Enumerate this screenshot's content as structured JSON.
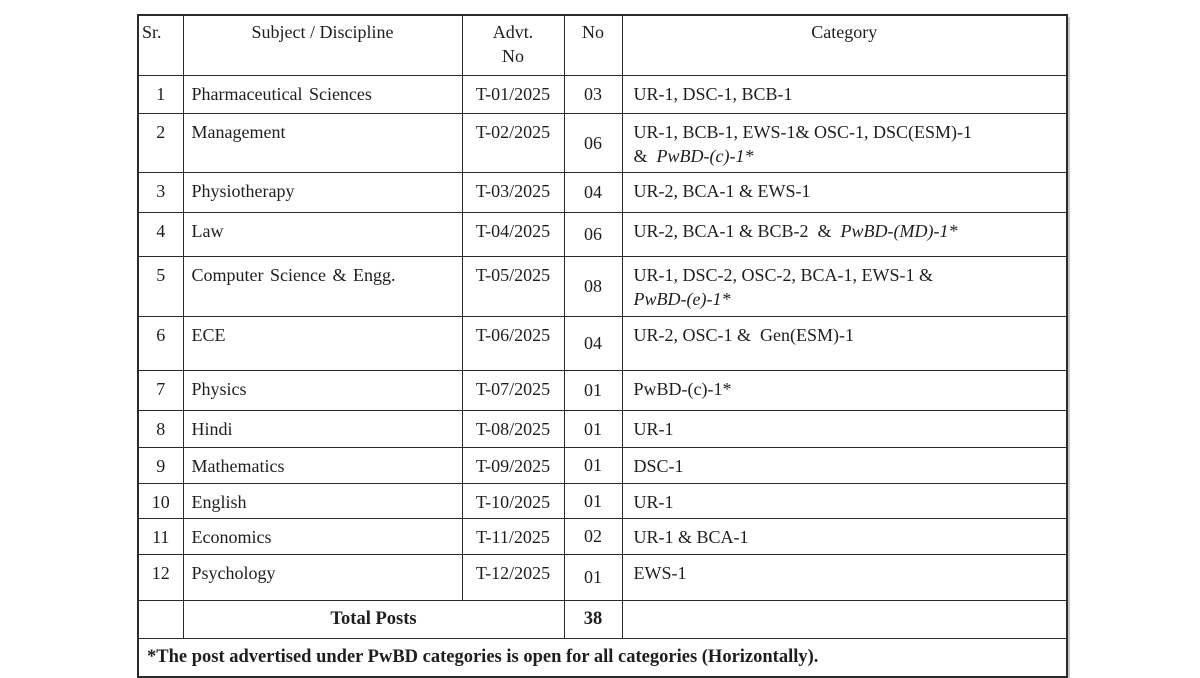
{
  "table": {
    "header": {
      "sr": "Sr.",
      "subject": "Subject / Discipline",
      "advt_line1": "Advt.",
      "advt_line2": "No",
      "no": "No",
      "category": "Category"
    },
    "rows": [
      {
        "sr": "1",
        "subject": "Pharmaceutical  Sciences",
        "advt": "T-01/2025",
        "no": "03",
        "category": [
          {
            "text": "UR-1, DSC-1, BCB-1"
          }
        ]
      },
      {
        "sr": "2",
        "subject": "Management",
        "advt": "T-02/2025",
        "no": "06",
        "category": [
          {
            "text": "UR-1, BCB-1, EWS-1& OSC-1, DSC(ESM)-1"
          },
          {
            "break": true
          },
          {
            "text": "&  "
          },
          {
            "text": "PwBD-(c)-1*",
            "italic": true
          }
        ]
      },
      {
        "sr": "3",
        "subject": "Physiotherapy",
        "advt": "T-03/2025",
        "no": "04",
        "category": [
          {
            "text": "UR-2, BCA-1 & EWS-1"
          }
        ]
      },
      {
        "sr": "4",
        "subject": "Law",
        "advt": "T-04/2025",
        "no": "06",
        "category": [
          {
            "text": "UR-2, BCA-1 & BCB-2  &  "
          },
          {
            "text": "PwBD-(MD)-1*",
            "italic": true
          }
        ]
      },
      {
        "sr": "5",
        "subject": "Computer  Science  &  Engg.",
        "advt": "T-05/2025",
        "no": "08",
        "category": [
          {
            "text": "UR-1, DSC-2, OSC-2, BCA-1, EWS-1 &"
          },
          {
            "break": true
          },
          {
            "text": "PwBD-(e)-1*",
            "italic": true
          }
        ]
      },
      {
        "sr": "6",
        "subject": "ECE",
        "advt": "T-06/2025",
        "no": "04",
        "category": [
          {
            "text": "UR-2, OSC-1 &  Gen(ESM)-1"
          }
        ]
      },
      {
        "sr": "7",
        "subject": "Physics",
        "advt": "T-07/2025",
        "no": "01",
        "category": [
          {
            "text": "PwBD-(c)-1*"
          }
        ]
      },
      {
        "sr": "8",
        "subject": "Hindi",
        "advt": "T-08/2025",
        "no": "01",
        "category": [
          {
            "text": "UR-1"
          }
        ]
      },
      {
        "sr": "9",
        "subject": "Mathematics",
        "advt": "T-09/2025",
        "no": "01",
        "category": [
          {
            "text": "DSC-1"
          }
        ]
      },
      {
        "sr": "10",
        "subject": "English",
        "advt": "T-10/2025",
        "no": "01",
        "category": [
          {
            "text": "UR-1"
          }
        ]
      },
      {
        "sr": "11",
        "subject": "Economics",
        "advt": "T-11/2025",
        "no": "02",
        "category": [
          {
            "text": "UR-1 & BCA-1"
          }
        ]
      },
      {
        "sr": "12",
        "subject": "Psychology",
        "advt": "T-12/2025",
        "no": "01",
        "category": [
          {
            "text": "EWS-1"
          }
        ]
      }
    ],
    "total": {
      "label": "Total Posts",
      "value": "38"
    },
    "footnote": "*The post advertised under PwBD categories is open for all categories (Horizontally)."
  }
}
